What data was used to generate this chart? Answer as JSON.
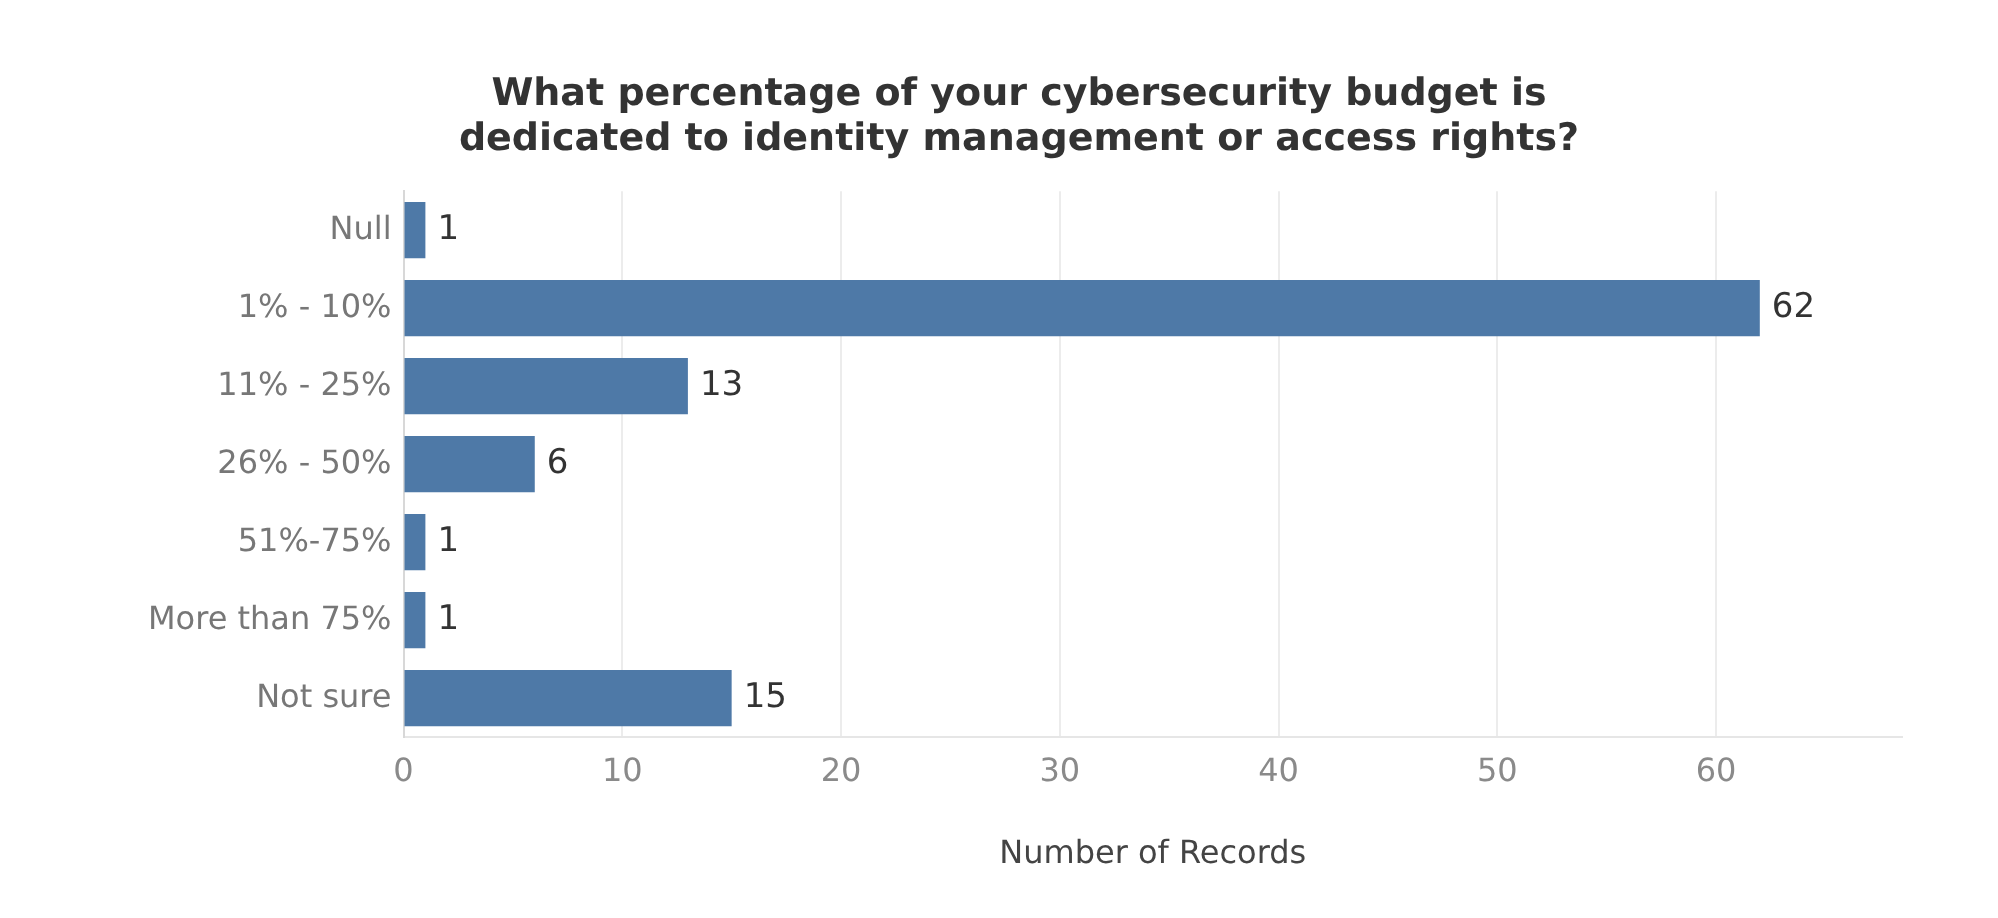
{
  "chart_data": {
    "type": "bar",
    "orientation": "horizontal",
    "title": "What percentage of your cybersecurity budget is\ndedicated to identity management or access rights?",
    "xlabel": "Number of Records",
    "categories": [
      "Null",
      "1% - 10%",
      "11% - 25%",
      "26% - 50%",
      "51%-75%",
      "More than 75%",
      "Not sure"
    ],
    "values": [
      1,
      62,
      13,
      6,
      1,
      1,
      15
    ],
    "color": "#4e79a7",
    "xlim": [
      0,
      68.5
    ],
    "xticks": [
      0,
      10,
      20,
      30,
      40,
      50,
      60
    ],
    "grid": "x",
    "data_labels": true,
    "legend": false
  }
}
